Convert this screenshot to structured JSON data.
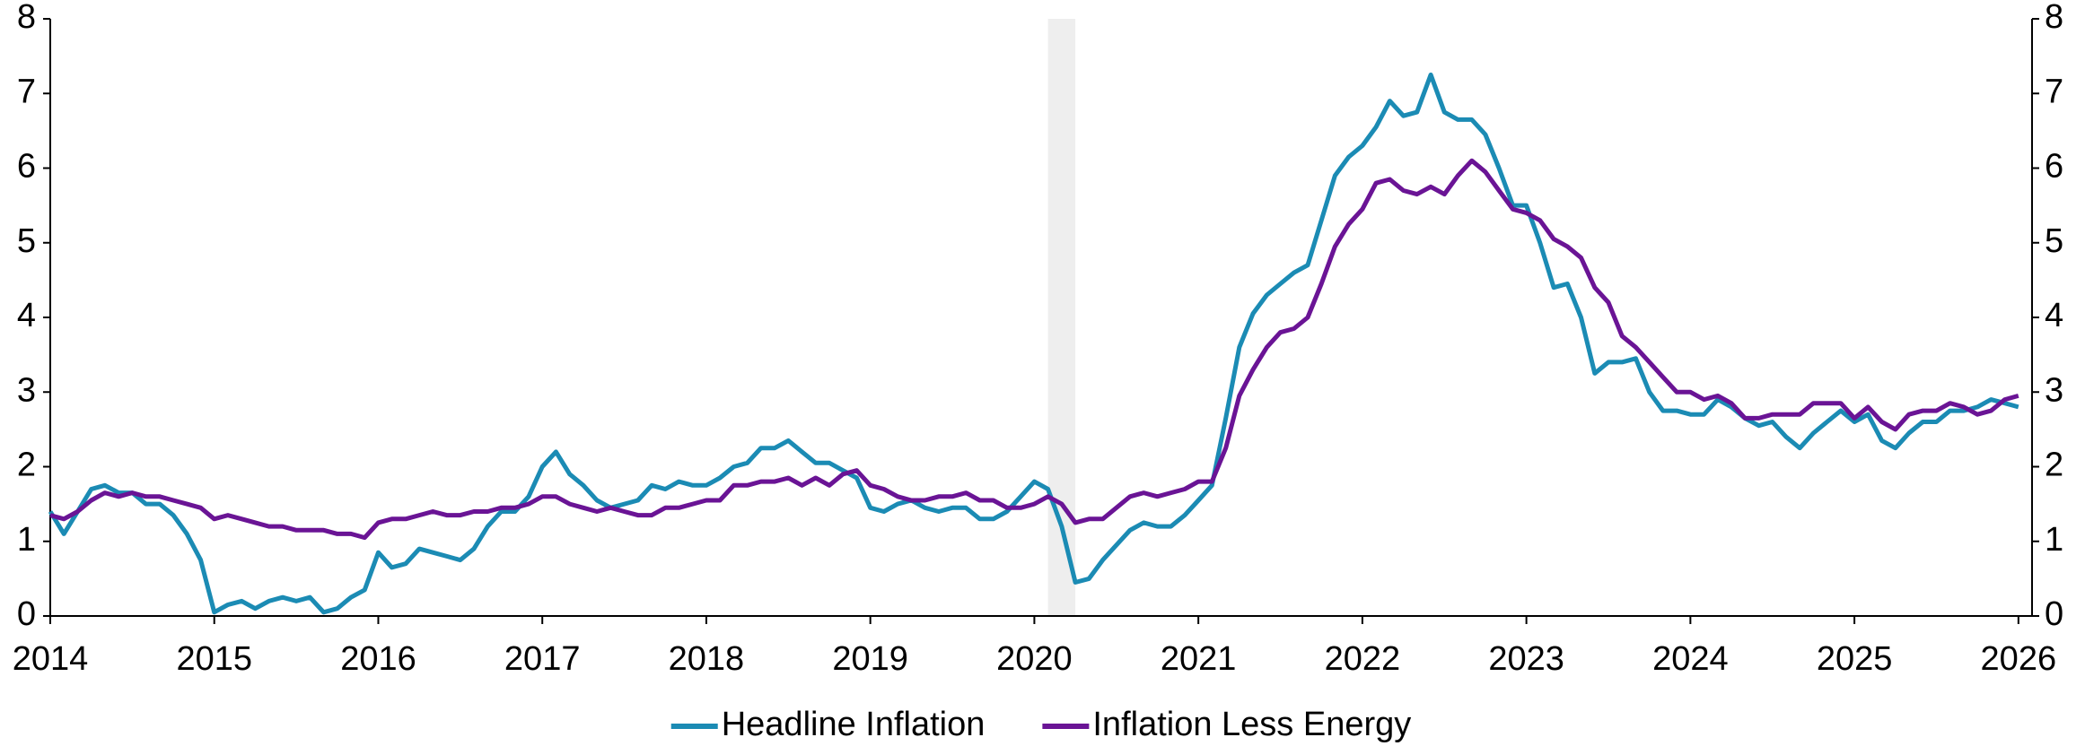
{
  "chart_data": {
    "type": "line",
    "x": [
      2014,
      2014.083,
      2014.167,
      2014.25,
      2014.333,
      2014.417,
      2014.5,
      2014.583,
      2014.667,
      2014.75,
      2014.833,
      2014.917,
      2015,
      2015.083,
      2015.167,
      2015.25,
      2015.333,
      2015.417,
      2015.5,
      2015.583,
      2015.667,
      2015.75,
      2015.833,
      2015.917,
      2016,
      2016.083,
      2016.167,
      2016.25,
      2016.333,
      2016.417,
      2016.5,
      2016.583,
      2016.667,
      2016.75,
      2016.833,
      2016.917,
      2017,
      2017.083,
      2017.167,
      2017.25,
      2017.333,
      2017.417,
      2017.5,
      2017.583,
      2017.667,
      2017.75,
      2017.833,
      2017.917,
      2018,
      2018.083,
      2018.167,
      2018.25,
      2018.333,
      2018.417,
      2018.5,
      2018.583,
      2018.667,
      2018.75,
      2018.833,
      2018.917,
      2019,
      2019.083,
      2019.167,
      2019.25,
      2019.333,
      2019.417,
      2019.5,
      2019.583,
      2019.667,
      2019.75,
      2019.833,
      2019.917,
      2020,
      2020.083,
      2020.167,
      2020.25,
      2020.333,
      2020.417,
      2020.5,
      2020.583,
      2020.667,
      2020.75,
      2020.833,
      2020.917,
      2021,
      2021.083,
      2021.167,
      2021.25,
      2021.333,
      2021.417,
      2021.5,
      2021.583,
      2021.667,
      2021.75,
      2021.833,
      2021.917,
      2022,
      2022.083,
      2022.167,
      2022.25,
      2022.333,
      2022.417,
      2022.5,
      2022.583,
      2022.667,
      2022.75,
      2022.833,
      2022.917,
      2023,
      2023.083,
      2023.167,
      2023.25,
      2023.333,
      2023.417,
      2023.5,
      2023.583,
      2023.667,
      2023.75,
      2023.833,
      2023.917,
      2024,
      2024.083,
      2024.167,
      2024.25,
      2024.333,
      2024.417,
      2024.5,
      2024.583,
      2024.667,
      2024.75,
      2024.833,
      2024.917,
      2025,
      2025.083,
      2025.167,
      2025.25,
      2025.333,
      2025.417,
      2025.5,
      2025.583,
      2025.667,
      2025.75,
      2025.833,
      2025.917,
      2026
    ],
    "series": [
      {
        "name": "Headline Inflation",
        "color": "#1b8bb4",
        "values": [
          1.4,
          1.1,
          1.4,
          1.7,
          1.75,
          1.65,
          1.65,
          1.5,
          1.5,
          1.35,
          1.1,
          0.75,
          0.05,
          0.15,
          0.2,
          0.1,
          0.2,
          0.25,
          0.2,
          0.25,
          0.05,
          0.1,
          0.25,
          0.35,
          0.85,
          0.65,
          0.7,
          0.9,
          0.85,
          0.8,
          0.75,
          0.9,
          1.2,
          1.4,
          1.4,
          1.6,
          2.0,
          2.2,
          1.9,
          1.75,
          1.55,
          1.45,
          1.5,
          1.55,
          1.75,
          1.7,
          1.8,
          1.75,
          1.75,
          1.85,
          2.0,
          2.05,
          2.25,
          2.25,
          2.35,
          2.2,
          2.05,
          2.05,
          1.95,
          1.85,
          1.45,
          1.4,
          1.5,
          1.55,
          1.45,
          1.4,
          1.45,
          1.45,
          1.3,
          1.3,
          1.4,
          1.6,
          1.8,
          1.7,
          1.2,
          0.45,
          0.5,
          0.75,
          0.95,
          1.15,
          1.25,
          1.2,
          1.2,
          1.35,
          1.55,
          1.75,
          2.65,
          3.6,
          4.05,
          4.3,
          4.45,
          4.6,
          4.7,
          5.3,
          5.9,
          6.15,
          6.3,
          6.55,
          6.9,
          6.7,
          6.75,
          7.25,
          6.75,
          6.65,
          6.65,
          6.45,
          6.0,
          5.5,
          5.5,
          5.0,
          4.4,
          4.45,
          4.0,
          3.25,
          3.4,
          3.4,
          3.45,
          3.0,
          2.75,
          2.75,
          2.7,
          2.7,
          2.9,
          2.8,
          2.65,
          2.55,
          2.6,
          2.4,
          2.25,
          2.45,
          2.6,
          2.75,
          2.6,
          2.7,
          2.35,
          2.25,
          2.45,
          2.6,
          2.6,
          2.75,
          2.75,
          2.8,
          2.9,
          2.85,
          2.8
        ]
      },
      {
        "name": "Inflation Less Energy",
        "color": "#6a1495",
        "values": [
          1.35,
          1.3,
          1.4,
          1.55,
          1.65,
          1.6,
          1.65,
          1.6,
          1.6,
          1.55,
          1.5,
          1.45,
          1.3,
          1.35,
          1.3,
          1.25,
          1.2,
          1.2,
          1.15,
          1.15,
          1.15,
          1.1,
          1.1,
          1.05,
          1.25,
          1.3,
          1.3,
          1.35,
          1.4,
          1.35,
          1.35,
          1.4,
          1.4,
          1.45,
          1.45,
          1.5,
          1.6,
          1.6,
          1.5,
          1.45,
          1.4,
          1.45,
          1.4,
          1.35,
          1.35,
          1.45,
          1.45,
          1.5,
          1.55,
          1.55,
          1.75,
          1.75,
          1.8,
          1.8,
          1.85,
          1.75,
          1.85,
          1.75,
          1.9,
          1.95,
          1.75,
          1.7,
          1.6,
          1.55,
          1.55,
          1.6,
          1.6,
          1.65,
          1.55,
          1.55,
          1.45,
          1.45,
          1.5,
          1.6,
          1.5,
          1.25,
          1.3,
          1.3,
          1.45,
          1.6,
          1.65,
          1.6,
          1.65,
          1.7,
          1.8,
          1.8,
          2.25,
          2.95,
          3.3,
          3.6,
          3.8,
          3.85,
          4.0,
          4.45,
          4.95,
          5.25,
          5.45,
          5.8,
          5.85,
          5.7,
          5.65,
          5.75,
          5.65,
          5.9,
          6.1,
          5.95,
          5.7,
          5.45,
          5.4,
          5.3,
          5.05,
          4.95,
          4.8,
          4.4,
          4.2,
          3.75,
          3.6,
          3.4,
          3.2,
          3.0,
          3.0,
          2.9,
          2.95,
          2.85,
          2.65,
          2.65,
          2.7,
          2.7,
          2.7,
          2.85,
          2.85,
          2.85,
          2.65,
          2.8,
          2.6,
          2.5,
          2.7,
          2.75,
          2.75,
          2.85,
          2.8,
          2.7,
          2.75,
          2.9,
          2.95
        ]
      }
    ],
    "shaded_regions": [
      [
        2020.083,
        2020.25
      ]
    ],
    "shade_color": "#eeeeee",
    "xlim": [
      2014,
      2026.083
    ],
    "xticks": [
      2014,
      2015,
      2016,
      2017,
      2018,
      2019,
      2020,
      2021,
      2022,
      2023,
      2024,
      2025,
      2026
    ],
    "ylim": [
      0,
      8
    ],
    "yticks": [
      0,
      1,
      2,
      3,
      4,
      5,
      6,
      7,
      8
    ],
    "y2lim": [
      0,
      8
    ],
    "y2ticks": [
      0,
      1,
      2,
      3,
      4,
      5,
      6,
      7,
      8
    ],
    "legend": "bottom"
  }
}
